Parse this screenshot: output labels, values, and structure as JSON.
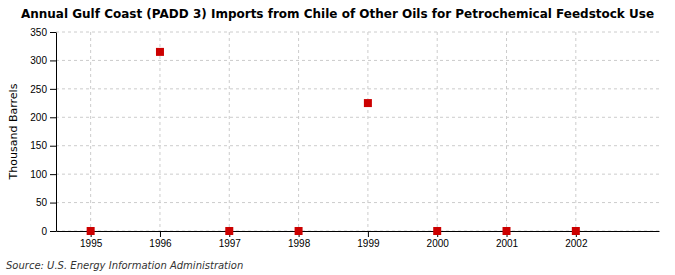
{
  "chart_data": {
    "type": "scatter",
    "title": "Annual Gulf Coast (PADD 3) Imports from Chile of Other Oils for Petrochemical Feedstock Use",
    "ylabel": "Thousand Barrels",
    "source": "Source: U.S. Energy Information Administration",
    "x": [
      1995,
      1996,
      1997,
      1998,
      1999,
      2000,
      2001,
      2002
    ],
    "values": [
      0,
      315,
      0,
      0,
      225,
      0,
      0,
      0
    ],
    "color": "#CC0000",
    "marker": "square",
    "xlim": [
      1994.5,
      2003.2
    ],
    "xticks": [
      1995,
      1996,
      1997,
      1998,
      1999,
      2000,
      2001,
      2002
    ],
    "ylim": [
      0,
      350
    ],
    "yticks": [
      0,
      50,
      100,
      150,
      200,
      250,
      300,
      350
    ],
    "grid": true
  }
}
